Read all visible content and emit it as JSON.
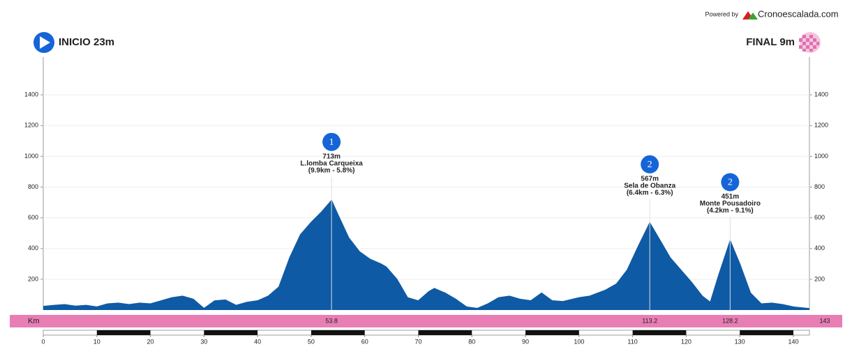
{
  "powered_by": "Powered by",
  "brand": "Cronoescalada.com",
  "start_label": "INICIO 23m",
  "finish_label": "FINAL 9m",
  "chart_data": {
    "type": "area",
    "x_axis_label": "Km",
    "x": [
      0,
      2,
      4,
      6,
      8,
      10,
      12,
      14,
      16,
      18,
      20,
      22,
      24,
      26,
      28,
      30,
      32,
      34,
      36,
      38,
      40,
      42,
      44,
      46,
      48,
      50,
      52,
      53.8,
      55,
      57,
      59,
      61,
      63,
      64,
      66,
      68,
      70,
      72,
      73,
      75,
      77,
      79,
      81,
      83,
      85,
      87,
      89,
      91,
      93,
      95,
      97,
      100,
      102,
      105,
      107,
      109,
      111,
      113.2,
      115,
      117,
      119,
      121,
      123,
      124.5,
      126,
      128.2,
      130,
      132,
      134,
      136,
      138,
      140,
      143
    ],
    "values": [
      23,
      30,
      35,
      25,
      30,
      20,
      40,
      45,
      35,
      45,
      40,
      60,
      80,
      90,
      70,
      10,
      60,
      65,
      30,
      50,
      60,
      90,
      150,
      340,
      490,
      570,
      640,
      713,
      620,
      470,
      380,
      330,
      300,
      280,
      200,
      80,
      60,
      120,
      140,
      110,
      70,
      20,
      10,
      40,
      80,
      90,
      70,
      60,
      110,
      60,
      55,
      80,
      90,
      130,
      170,
      260,
      410,
      567,
      460,
      340,
      260,
      180,
      90,
      50,
      220,
      451,
      300,
      110,
      40,
      45,
      35,
      20,
      9
    ],
    "color": "#0f5aa5",
    "xlim": [
      0,
      143
    ],
    "xticks": [
      0,
      10,
      20,
      30,
      40,
      50,
      60,
      70,
      80,
      90,
      100,
      110,
      120,
      130,
      140
    ],
    "ylim": [
      0,
      1600
    ],
    "yticks": [
      200,
      400,
      600,
      800,
      1000,
      1200,
      1400
    ],
    "climbs": [
      {
        "km": 53.8,
        "elevation": 713,
        "elevation_label": "713m",
        "category": 1,
        "name": "L.lomba Carqueixa",
        "details": "(9.9km - 5.8%)"
      },
      {
        "km": 113.2,
        "elevation": 567,
        "elevation_label": "567m",
        "category": 2,
        "name": "Sela de Obanza",
        "details": "(6.4km - 6.3%)"
      },
      {
        "km": 128.2,
        "elevation": 451,
        "elevation_label": "451m",
        "category": 2,
        "name": "Monte Pousadoiro",
        "details": "(4.2km - 9.1%)"
      }
    ]
  }
}
